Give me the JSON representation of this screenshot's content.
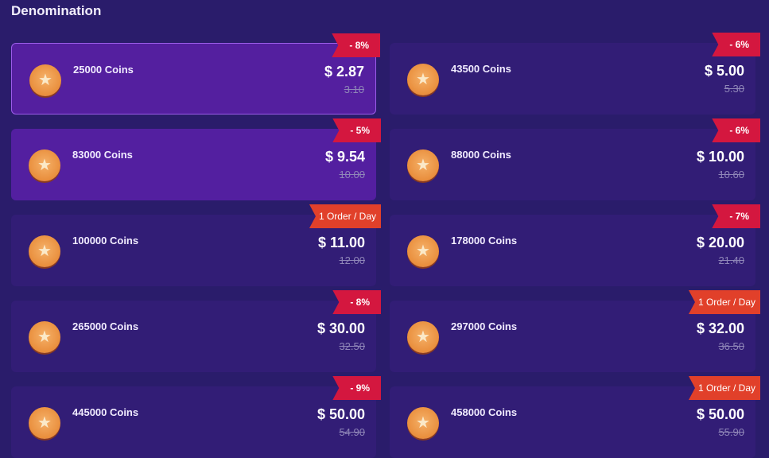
{
  "title": "Denomination",
  "colors": {
    "background": "#2a1c6b",
    "card": "#321d76",
    "selected_card": "#541f9f",
    "discount_badge": "#d4173f",
    "order_badge": "#e1402a",
    "coin": "#e98e3c"
  },
  "items": [
    {
      "name": "25000 Coins",
      "price": "$ 2.87",
      "old_price": "3.10",
      "badge": "- 8%",
      "badge_type": "discount",
      "state": "selected"
    },
    {
      "name": "43500 Coins",
      "price": "$ 5.00",
      "old_price": "5.30",
      "badge": "- 6%",
      "badge_type": "discount",
      "state": "normal"
    },
    {
      "name": "83000 Coins",
      "price": "$ 9.54",
      "old_price": "10.00",
      "badge": "- 5%",
      "badge_type": "discount",
      "state": "highlight"
    },
    {
      "name": "88000 Coins",
      "price": "$ 10.00",
      "old_price": "10.60",
      "badge": "- 6%",
      "badge_type": "discount",
      "state": "normal"
    },
    {
      "name": "100000 Coins",
      "price": "$ 11.00",
      "old_price": "12.00",
      "badge": "1 Order / Day",
      "badge_type": "order",
      "state": "normal"
    },
    {
      "name": "178000 Coins",
      "price": "$ 20.00",
      "old_price": "21.40",
      "badge": "- 7%",
      "badge_type": "discount",
      "state": "normal"
    },
    {
      "name": "265000 Coins",
      "price": "$ 30.00",
      "old_price": "32.50",
      "badge": "- 8%",
      "badge_type": "discount",
      "state": "normal"
    },
    {
      "name": "297000 Coins",
      "price": "$ 32.00",
      "old_price": "36.50",
      "badge": "1 Order / Day",
      "badge_type": "order",
      "state": "normal"
    },
    {
      "name": "445000 Coins",
      "price": "$ 50.00",
      "old_price": "54.90",
      "badge": "- 9%",
      "badge_type": "discount",
      "state": "normal"
    },
    {
      "name": "458000 Coins",
      "price": "$ 50.00",
      "old_price": "55.90",
      "badge": "1 Order / Day",
      "badge_type": "order",
      "state": "normal"
    }
  ]
}
